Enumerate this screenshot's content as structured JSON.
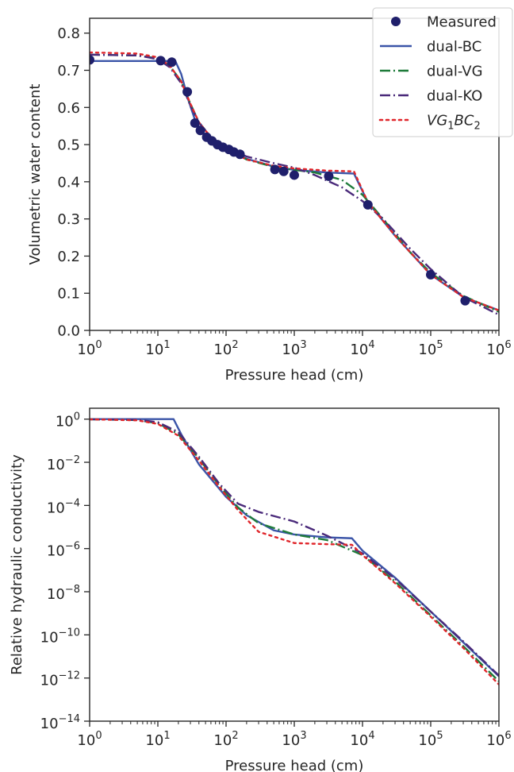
{
  "chart_data": [
    {
      "type": "line",
      "xlabel": "Pressure head (cm)",
      "ylabel": "Volumetric water content",
      "xscale": "log",
      "xlim": [
        1,
        1000000
      ],
      "ylim": [
        0.0,
        0.84
      ],
      "xticks": [
        1,
        10,
        100,
        1000,
        10000,
        100000,
        1000000
      ],
      "xtick_labels": [
        {
          "base": "10",
          "exp": "0"
        },
        {
          "base": "10",
          "exp": "1"
        },
        {
          "base": "10",
          "exp": "2"
        },
        {
          "base": "10",
          "exp": "3"
        },
        {
          "base": "10",
          "exp": "4"
        },
        {
          "base": "10",
          "exp": "5"
        },
        {
          "base": "10",
          "exp": "6"
        }
      ],
      "yticks": [
        0.0,
        0.1,
        0.2,
        0.3,
        0.4,
        0.5,
        0.6,
        0.7,
        0.8
      ],
      "ytick_labels": [
        "0.0",
        "0.1",
        "0.2",
        "0.3",
        "0.4",
        "0.5",
        "0.6",
        "0.7",
        "0.8"
      ],
      "legend": {
        "placement": "top-right",
        "entries": [
          {
            "label": "Measured",
            "style": "marker",
            "color": "#1f1f6b"
          },
          {
            "label": "dual-BC",
            "style": "solid",
            "color": "#3b55a8"
          },
          {
            "label": "dual-VG",
            "style": "dashdot",
            "color": "#1e7b3a"
          },
          {
            "label": "dual-KO",
            "style": "dashdot",
            "color": "#4a2a7a"
          },
          {
            "label": "VG1BC2",
            "label_parts": {
              "a": "VG",
              "a_sub": "1",
              "b": "BC",
              "b_sub": "2"
            },
            "style": "dotted",
            "color": "#e0262b"
          }
        ]
      },
      "series": [
        {
          "name": "Measured",
          "kind": "scatter",
          "color": "#1f1f6b",
          "points": [
            [
              1,
              0.728
            ],
            [
              11,
              0.726
            ],
            [
              16,
              0.722
            ],
            [
              27,
              0.642
            ],
            [
              35,
              0.558
            ],
            [
              42,
              0.538
            ],
            [
              52,
              0.52
            ],
            [
              62,
              0.51
            ],
            [
              75,
              0.5
            ],
            [
              90,
              0.493
            ],
            [
              110,
              0.487
            ],
            [
              130,
              0.48
            ],
            [
              160,
              0.474
            ],
            [
              520,
              0.433
            ],
            [
              700,
              0.428
            ],
            [
              1000,
              0.418
            ],
            [
              3200,
              0.415
            ],
            [
              12000,
              0.338
            ],
            [
              100000,
              0.15
            ],
            [
              320000,
              0.08
            ]
          ]
        },
        {
          "name": "dual-BC",
          "kind": "line",
          "dash": "",
          "color": "#3b55a8",
          "points": [
            [
              1,
              0.725
            ],
            [
              18,
              0.725
            ],
            [
              22,
              0.69
            ],
            [
              28,
              0.62
            ],
            [
              36,
              0.56
            ],
            [
              50,
              0.525
            ],
            [
              70,
              0.502
            ],
            [
              100,
              0.487
            ],
            [
              200,
              0.462
            ],
            [
              500,
              0.441
            ],
            [
              1000,
              0.432
            ],
            [
              3000,
              0.425
            ],
            [
              7500,
              0.422
            ],
            [
              12000,
              0.345
            ],
            [
              30000,
              0.255
            ],
            [
              100000,
              0.15
            ],
            [
              300000,
              0.09
            ],
            [
              1000000,
              0.054
            ]
          ]
        },
        {
          "name": "dual-VG",
          "kind": "line",
          "dash": "13 4 2 4",
          "color": "#1e7b3a",
          "points": [
            [
              1,
              0.742
            ],
            [
              5,
              0.74
            ],
            [
              10,
              0.732
            ],
            [
              15,
              0.712
            ],
            [
              22,
              0.67
            ],
            [
              30,
              0.61
            ],
            [
              40,
              0.56
            ],
            [
              60,
              0.52
            ],
            [
              100,
              0.49
            ],
            [
              200,
              0.46
            ],
            [
              500,
              0.44
            ],
            [
              1000,
              0.432
            ],
            [
              2000,
              0.425
            ],
            [
              5000,
              0.405
            ],
            [
              10000,
              0.365
            ],
            [
              20000,
              0.3
            ],
            [
              50000,
              0.21
            ],
            [
              100000,
              0.155
            ],
            [
              300000,
              0.093
            ],
            [
              1000000,
              0.05
            ]
          ]
        },
        {
          "name": "dual-KO",
          "kind": "line",
          "dash": "13 4 2 4",
          "color": "#4a2a7a",
          "points": [
            [
              1,
              0.742
            ],
            [
              5,
              0.74
            ],
            [
              10,
              0.73
            ],
            [
              15,
              0.708
            ],
            [
              22,
              0.665
            ],
            [
              30,
              0.605
            ],
            [
              40,
              0.56
            ],
            [
              60,
              0.52
            ],
            [
              100,
              0.492
            ],
            [
              200,
              0.468
            ],
            [
              500,
              0.45
            ],
            [
              1000,
              0.438
            ],
            [
              2000,
              0.418
            ],
            [
              5000,
              0.385
            ],
            [
              10000,
              0.348
            ],
            [
              20000,
              0.3
            ],
            [
              50000,
              0.22
            ],
            [
              100000,
              0.165
            ],
            [
              300000,
              0.09
            ],
            [
              1000000,
              0.042
            ]
          ]
        },
        {
          "name": "VG1BC2",
          "kind": "line",
          "dash": "3 5",
          "color": "#e0262b",
          "points": [
            [
              1,
              0.748
            ],
            [
              5,
              0.745
            ],
            [
              10,
              0.735
            ],
            [
              15,
              0.712
            ],
            [
              22,
              0.67
            ],
            [
              30,
              0.61
            ],
            [
              40,
              0.56
            ],
            [
              60,
              0.52
            ],
            [
              100,
              0.488
            ],
            [
              200,
              0.46
            ],
            [
              500,
              0.443
            ],
            [
              1000,
              0.436
            ],
            [
              3000,
              0.43
            ],
            [
              7500,
              0.428
            ],
            [
              12000,
              0.345
            ],
            [
              30000,
              0.255
            ],
            [
              100000,
              0.15
            ],
            [
              300000,
              0.09
            ],
            [
              1000000,
              0.054
            ]
          ]
        }
      ]
    },
    {
      "type": "line",
      "xlabel": "Pressure head (cm)",
      "ylabel": "Relative hydraulic conductivity",
      "xscale": "log",
      "yscale": "log",
      "xlim": [
        1,
        1000000
      ],
      "ylim": [
        1e-14,
        3.2
      ],
      "xticks": [
        1,
        10,
        100,
        1000,
        10000,
        100000,
        1000000
      ],
      "xtick_labels": [
        {
          "base": "10",
          "exp": "0"
        },
        {
          "base": "10",
          "exp": "1"
        },
        {
          "base": "10",
          "exp": "2"
        },
        {
          "base": "10",
          "exp": "3"
        },
        {
          "base": "10",
          "exp": "4"
        },
        {
          "base": "10",
          "exp": "5"
        },
        {
          "base": "10",
          "exp": "6"
        }
      ],
      "yticks": [
        1e-14,
        1e-12,
        1e-10,
        1e-08,
        1e-06,
        0.0001,
        0.01,
        1
      ],
      "ytick_labels": [
        {
          "base": "10",
          "exp": "−14"
        },
        {
          "base": "10",
          "exp": "−12"
        },
        {
          "base": "10",
          "exp": "−10"
        },
        {
          "base": "10",
          "exp": "−8"
        },
        {
          "base": "10",
          "exp": "−6"
        },
        {
          "base": "10",
          "exp": "−4"
        },
        {
          "base": "10",
          "exp": "−2"
        },
        {
          "base": "10",
          "exp": "0"
        }
      ],
      "series": [
        {
          "name": "dual-BC",
          "kind": "line",
          "dash": "",
          "color": "#3b55a8",
          "points": [
            [
              1,
              1.0
            ],
            [
              17,
              1.0
            ],
            [
              22,
              0.2
            ],
            [
              40,
              0.008
            ],
            [
              100,
              0.00025
            ],
            [
              200,
              3.5e-05
            ],
            [
              500,
              7e-06
            ],
            [
              1000,
              4.5e-06
            ],
            [
              3000,
              3.3e-06
            ],
            [
              7000,
              3e-06
            ],
            [
              10000,
              8e-07
            ],
            [
              30000,
              4.5e-08
            ],
            [
              100000,
              1.2e-09
            ],
            [
              300000,
              4.5e-11
            ],
            [
              1000000,
              1.2e-12
            ]
          ]
        },
        {
          "name": "dual-VG",
          "kind": "line",
          "dash": "13 4 2 4",
          "color": "#1e7b3a",
          "points": [
            [
              1,
              0.98
            ],
            [
              5,
              0.9
            ],
            [
              10,
              0.65
            ],
            [
              20,
              0.2
            ],
            [
              40,
              0.015
            ],
            [
              80,
              0.0008
            ],
            [
              150,
              8e-05
            ],
            [
              300,
              1.5e-05
            ],
            [
              1000,
              4.5e-06
            ],
            [
              3000,
              2.5e-06
            ],
            [
              10000,
              5e-07
            ],
            [
              30000,
              3e-08
            ],
            [
              100000,
              8e-10
            ],
            [
              300000,
              3e-11
            ],
            [
              1000000,
              7e-13
            ]
          ]
        },
        {
          "name": "dual-KO",
          "kind": "line",
          "dash": "13 4 2 4",
          "color": "#4a2a7a",
          "points": [
            [
              1,
              0.98
            ],
            [
              5,
              0.93
            ],
            [
              10,
              0.72
            ],
            [
              20,
              0.25
            ],
            [
              40,
              0.018
            ],
            [
              80,
              0.001
            ],
            [
              150,
              0.00012
            ],
            [
              300,
              5e-05
            ],
            [
              1000,
              1.8e-05
            ],
            [
              3000,
              4e-06
            ],
            [
              10000,
              6e-07
            ],
            [
              30000,
              4e-08
            ],
            [
              100000,
              1.2e-09
            ],
            [
              300000,
              5e-11
            ],
            [
              1000000,
              1.3e-12
            ]
          ]
        },
        {
          "name": "VG1BC2",
          "kind": "line",
          "dash": "3 5",
          "color": "#e0262b",
          "points": [
            [
              1,
              0.98
            ],
            [
              5,
              0.88
            ],
            [
              10,
              0.6
            ],
            [
              20,
              0.17
            ],
            [
              40,
              0.012
            ],
            [
              80,
              0.0007
            ],
            [
              150,
              6e-05
            ],
            [
              300,
              6e-06
            ],
            [
              1000,
              1.8e-06
            ],
            [
              3000,
              1.6e-06
            ],
            [
              7000,
              1.5e-06
            ],
            [
              10000,
              5e-07
            ],
            [
              30000,
              2.5e-08
            ],
            [
              100000,
              7e-10
            ],
            [
              300000,
              2.5e-11
            ],
            [
              1000000,
              5e-13
            ]
          ]
        }
      ]
    }
  ]
}
